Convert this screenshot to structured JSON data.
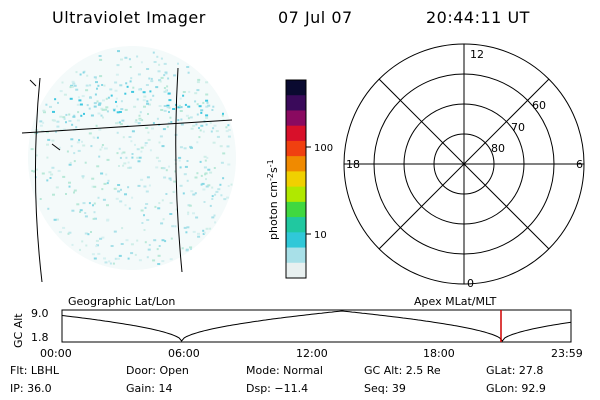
{
  "header": {
    "instrument": "Ultraviolet Imager",
    "date": "07 Jul 07",
    "time": "20:44:11 UT"
  },
  "colorbar": {
    "label": "photon cm",
    "label_exp1": "-2",
    "label_mid": "s",
    "label_exp2": "-1",
    "tick_100": "100",
    "tick_10": "10",
    "colors": [
      "#0a0a30",
      "#3a0a5a",
      "#8a0a60",
      "#d8102a",
      "#f04010",
      "#f08a00",
      "#f0d000",
      "#b0e800",
      "#40d840",
      "#20c8a0",
      "#30c8d8",
      "#a8e0e8",
      "#e8f0f0"
    ]
  },
  "polar_plot": {
    "mlt_12": "12",
    "mlt_18": "18",
    "mlt_6": "6",
    "mlt_0": "0",
    "lat_60": "60",
    "lat_70": "70",
    "lat_80": "80"
  },
  "image_panel": {
    "label_left": "Geographic Lat/Lon",
    "label_right": "Apex MLat/MLT"
  },
  "orbit_plot": {
    "ylabel": "GC Alt",
    "ytick_top": "9.0",
    "ytick_bottom": "1.8",
    "xticks": [
      "00:00",
      "06:00",
      "12:00",
      "18:00",
      "23:59"
    ]
  },
  "info": {
    "filter": "Flt: LBHL",
    "door": "Door: Open",
    "mode": "Mode: Normal",
    "gc_alt": "GC Alt: 2.5 Re",
    "glat": "GLat: 27.8",
    "ip": "IP: 36.0",
    "gain": "Gain: 14",
    "dsp": "Dsp:  −11.4",
    "seq": "Seq: 39",
    "glon": "GLon: 92.9"
  }
}
